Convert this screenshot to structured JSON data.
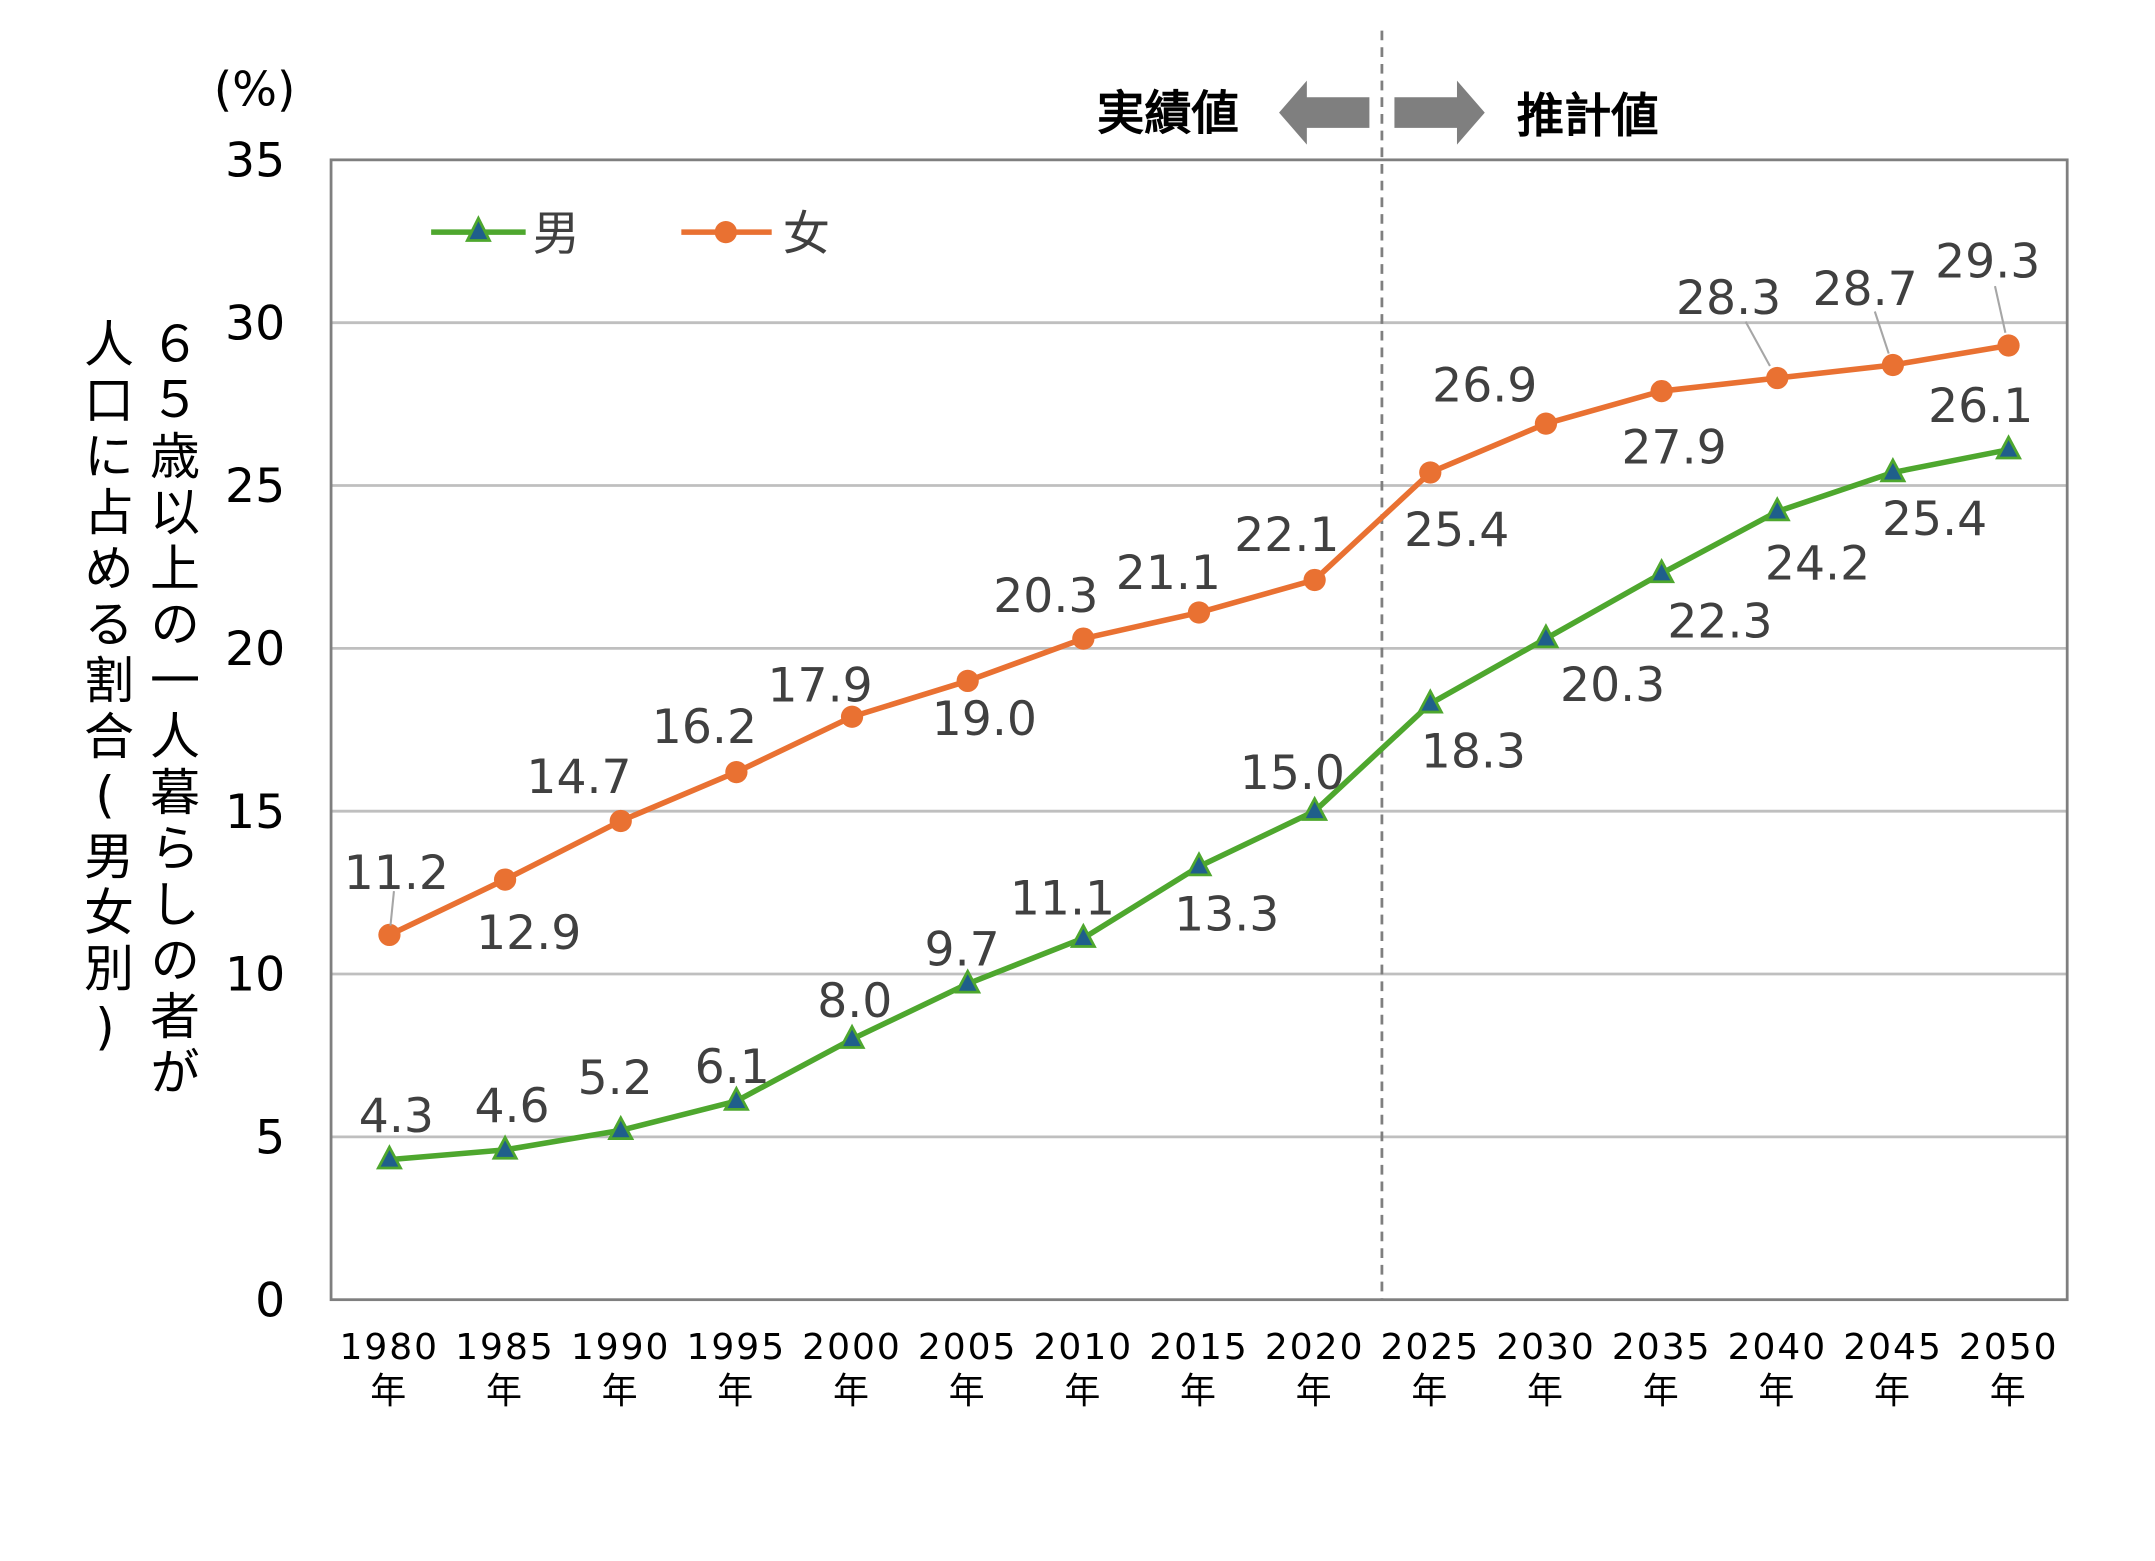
{
  "chart_data": {
    "type": "line",
    "categories": [
      "1980年",
      "1985年",
      "1990年",
      "1995年",
      "2000年",
      "2005年",
      "2010年",
      "2015年",
      "2020年",
      "2025年",
      "2030年",
      "2035年",
      "2040年",
      "2045年",
      "2050年"
    ],
    "category_years": [
      "1980",
      "1985",
      "1990",
      "1995",
      "2000",
      "2005",
      "2010",
      "2015",
      "2020",
      "2025",
      "2030",
      "2035",
      "2040",
      "2045",
      "2050"
    ],
    "year_suffix": "年",
    "series": [
      {
        "name": "男",
        "marker": "triangle",
        "color": "#4ea72e",
        "marker_fill": "#1f5f8b",
        "values": [
          4.3,
          4.6,
          5.2,
          6.1,
          8.0,
          9.7,
          11.1,
          13.3,
          15.0,
          18.3,
          20.3,
          22.3,
          24.2,
          25.4,
          26.1
        ]
      },
      {
        "name": "女",
        "marker": "circle",
        "color": "#e97132",
        "marker_fill": "#e97132",
        "values": [
          11.2,
          12.9,
          14.7,
          16.2,
          17.9,
          19.0,
          20.3,
          21.1,
          22.1,
          25.4,
          26.9,
          27.9,
          28.3,
          28.7,
          29.3
        ]
      }
    ],
    "data_labels": {
      "男": [
        "4.3",
        "4.6",
        "5.2",
        "6.1",
        "8.0",
        "9.7",
        "11.1",
        "13.3",
        "15.0",
        "18.3",
        "20.3",
        "22.3",
        "24.2",
        "25.4",
        "26.1"
      ],
      "女": [
        "11.2",
        "12.9",
        "14.7",
        "16.2",
        "17.9",
        "19.0",
        "20.3",
        "21.1",
        "22.1",
        "25.4",
        "26.9",
        "27.9",
        "28.3",
        "28.7",
        "29.3"
      ]
    },
    "ylabel": "６５歳以上の一人暮らしの者が人口に占める割合(男女別)",
    "ylabel_line1": "６５歳以上の一人暮らしの者が",
    "ylabel_line2": "人口に占める割合(男女別)",
    "yunit": "(%)",
    "ylim": [
      0,
      35
    ],
    "yticks": [
      "0",
      "5",
      "10",
      "15",
      "20",
      "25",
      "30",
      "35"
    ],
    "grid": true,
    "legend_position": "top-left",
    "divider": {
      "between": [
        "2020年",
        "2025年"
      ],
      "left_label": "実績値",
      "right_label": "推計値"
    },
    "axis_color": "#7f7f7f",
    "grid_color": "#bfbfbf",
    "arrow_color": "#7f7f7f"
  }
}
